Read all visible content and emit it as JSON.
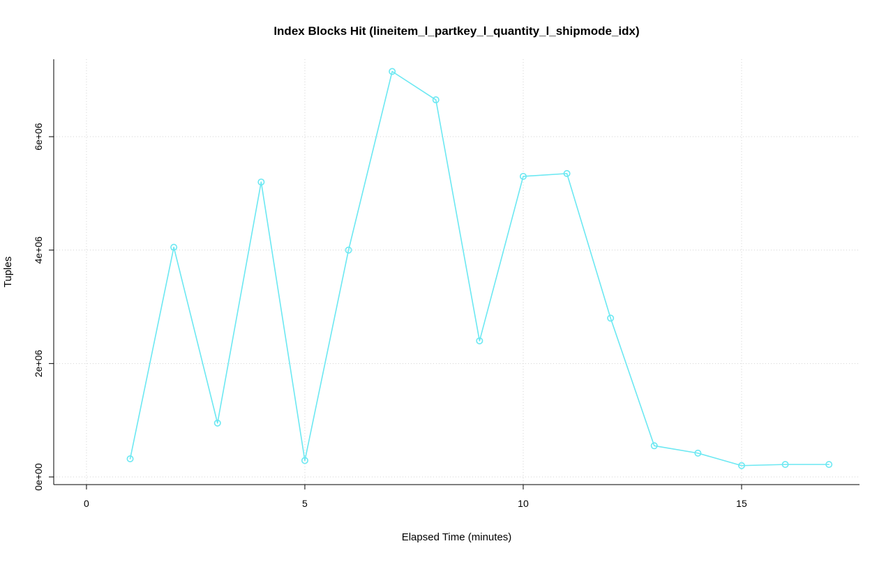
{
  "page": {
    "background_color": "#ffffff"
  },
  "chart_data": {
    "type": "line",
    "title": "Index Blocks Hit (lineitem_l_partkey_l_quantity_l_shipmode_idx)",
    "xlabel": "Elapsed Time (minutes)",
    "ylabel": "Tuples",
    "x": [
      1,
      2,
      3,
      4,
      5,
      6,
      7,
      8,
      9,
      10,
      11,
      12,
      13,
      14,
      15,
      16,
      17
    ],
    "values": [
      320000,
      4050000,
      950000,
      5200000,
      290000,
      4000000,
      7150000,
      6650000,
      2400000,
      5300000,
      5350000,
      2800000,
      550000,
      420000,
      200000,
      220000,
      220000
    ],
    "xlim": [
      -0.75,
      17.7
    ],
    "ylim": [
      -135000,
      7365000
    ],
    "xticks": [
      0,
      5,
      10,
      15
    ],
    "xtick_labels": [
      "0",
      "5",
      "10",
      "15"
    ],
    "yticks": [
      0,
      2000000,
      4000000,
      6000000
    ],
    "ytick_labels": [
      "0e+00",
      "2e+06",
      "4e+06",
      "6e+06"
    ],
    "grid": true,
    "legend": "none",
    "line_color": "#6ce8f2",
    "marker": "open-circle",
    "grid_color": "#d3d3d3",
    "axis_color": "#000000",
    "text_color": "#000000"
  }
}
